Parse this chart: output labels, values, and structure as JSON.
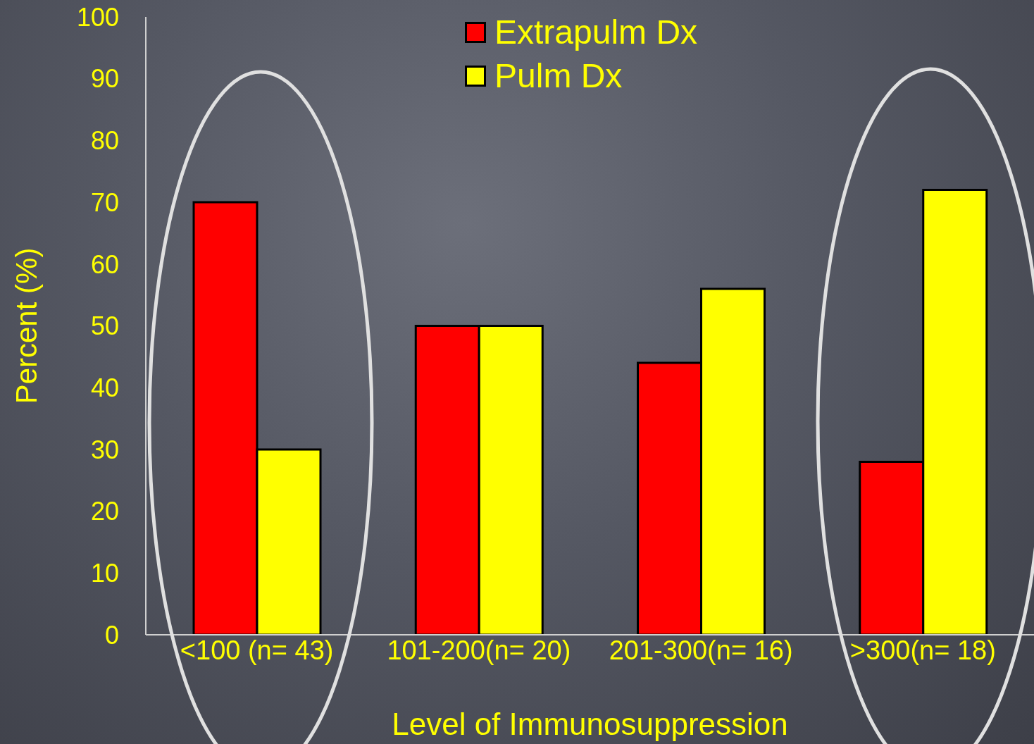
{
  "chart_data": {
    "type": "bar",
    "xlabel": "Level of Immunosuppression",
    "ylabel": "Percent (%)",
    "categories": [
      "<100 (n= 43)",
      "101-200(n= 20)",
      "201-300(n= 16)",
      ">300(n= 18)"
    ],
    "series": [
      {
        "name": "Extrapulm Dx",
        "color": "#ff0000",
        "values": [
          70,
          50,
          44,
          28
        ]
      },
      {
        "name": "Pulm Dx",
        "color": "#ffff00",
        "values": [
          30,
          50,
          56,
          72
        ]
      }
    ],
    "ylim": [
      0,
      100
    ],
    "yticks": [
      0,
      10,
      20,
      30,
      40,
      50,
      60,
      70,
      80,
      90,
      100
    ],
    "grid": false,
    "legend": "top"
  }
}
